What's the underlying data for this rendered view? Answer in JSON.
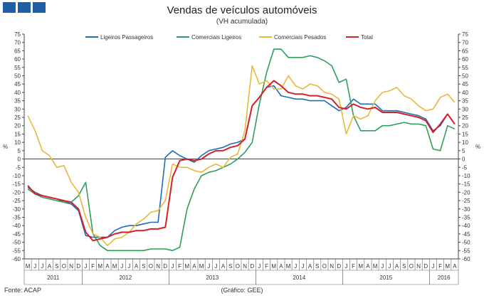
{
  "header": {
    "title": "Vendas de veículos automóveis",
    "subtitle": "(VH acumulada)"
  },
  "footer": {
    "source": "Fonte: ACAP",
    "credit": "(Gráfico: GEE)"
  },
  "chart_data": {
    "type": "line",
    "title": "Vendas de veículos automóveis",
    "subtitle": "(VH acumulada)",
    "ylabel": "%",
    "y2label": "%",
    "ylim": [
      -60,
      75
    ],
    "yticks": [
      -60,
      -55,
      -50,
      -45,
      -40,
      -35,
      -30,
      -25,
      -20,
      -15,
      -10,
      -5,
      0,
      5,
      10,
      15,
      20,
      25,
      30,
      35,
      40,
      45,
      50,
      55,
      60,
      65,
      70,
      75
    ],
    "grid": false,
    "legend_position": "top",
    "months": [
      "M",
      "J",
      "J",
      "A",
      "S",
      "O",
      "N",
      "D",
      "J",
      "F",
      "M",
      "A",
      "M",
      "J",
      "J",
      "A",
      "S",
      "O",
      "N",
      "D",
      "J",
      "F",
      "M",
      "A",
      "M",
      "J",
      "J",
      "A",
      "S",
      "O",
      "N",
      "D",
      "J",
      "F",
      "M",
      "A",
      "M",
      "J",
      "J",
      "A",
      "S",
      "O",
      "N",
      "D",
      "J",
      "F",
      "M",
      "A",
      "M",
      "J",
      "J",
      "A",
      "S",
      "O",
      "N",
      "D",
      "J",
      "F",
      "M",
      "A"
    ],
    "years": [
      {
        "label": "2011",
        "start": 0,
        "count": 8
      },
      {
        "label": "2012",
        "start": 8,
        "count": 12
      },
      {
        "label": "2013",
        "start": 20,
        "count": 12
      },
      {
        "label": "2014",
        "start": 32,
        "count": 12
      },
      {
        "label": "2015",
        "start": 44,
        "count": 12
      },
      {
        "label": "2016",
        "start": 56,
        "count": 4
      }
    ],
    "series": [
      {
        "name": "Ligeiros Passageiros",
        "color": "#1f6bb5",
        "values": [
          -17,
          -20,
          -22,
          -23,
          -24,
          -26,
          -27,
          -31,
          -46,
          -47,
          -47,
          -47,
          -43,
          -41,
          -40,
          -40,
          -39,
          -38,
          -38,
          1,
          5,
          2,
          0,
          -2,
          2,
          5,
          6,
          7,
          9,
          10,
          12,
          32,
          37,
          43,
          44,
          38,
          37,
          36,
          36,
          35,
          35,
          35,
          32,
          29,
          31,
          36,
          33,
          33,
          33,
          29,
          29,
          29,
          28,
          27,
          26,
          24,
          17,
          20,
          27,
          21
        ]
      },
      {
        "name": "Comerciais Ligeiros",
        "color": "#2e9e5b",
        "values": [
          -18,
          -21,
          -23,
          -24,
          -25,
          -26,
          -26,
          -22,
          -14,
          -45,
          -52,
          -55,
          -55,
          -55,
          -55,
          -55,
          -55,
          -54,
          -54,
          -54,
          -55,
          -53,
          -30,
          -18,
          -10,
          -8,
          -7,
          -5,
          -3,
          0,
          4,
          10,
          33,
          52,
          66,
          66,
          61,
          61,
          61,
          62,
          61,
          59,
          56,
          46,
          48,
          26,
          17,
          17,
          17,
          20,
          20,
          21,
          22,
          21,
          21,
          20,
          6,
          5,
          20,
          18
        ]
      },
      {
        "name": "Comerciais Pesados",
        "color": "#e8b83c",
        "values": [
          26,
          17,
          5,
          2,
          -5,
          -4,
          -14,
          -20,
          -35,
          -45,
          -47,
          -52,
          -48,
          -47,
          -44,
          -39,
          -36,
          -32,
          -31,
          -25,
          -3,
          -5,
          -5,
          -7,
          -8,
          -5,
          -3,
          -5,
          1,
          3,
          17,
          56,
          45,
          47,
          42,
          42,
          50,
          44,
          42,
          45,
          44,
          40,
          39,
          36,
          15,
          26,
          24,
          26,
          35,
          40,
          41,
          43,
          38,
          36,
          32,
          29,
          30,
          37,
          39,
          34
        ]
      },
      {
        "name": "Total",
        "color": "#d42027",
        "values": [
          -16,
          -21,
          -22,
          -23,
          -24,
          -25,
          -26,
          -30,
          -44,
          -49,
          -48,
          -47,
          -45,
          -44,
          -44,
          -43,
          -43,
          -42,
          -42,
          -41,
          -11,
          -1,
          0,
          -1,
          0,
          3,
          5,
          5,
          7,
          8,
          12,
          32,
          37,
          43,
          47,
          44,
          40,
          39,
          39,
          38,
          38,
          37,
          36,
          31,
          30,
          33,
          31,
          30,
          31,
          28,
          28,
          28,
          27,
          26,
          25,
          23,
          16,
          21,
          27,
          21
        ]
      }
    ]
  }
}
